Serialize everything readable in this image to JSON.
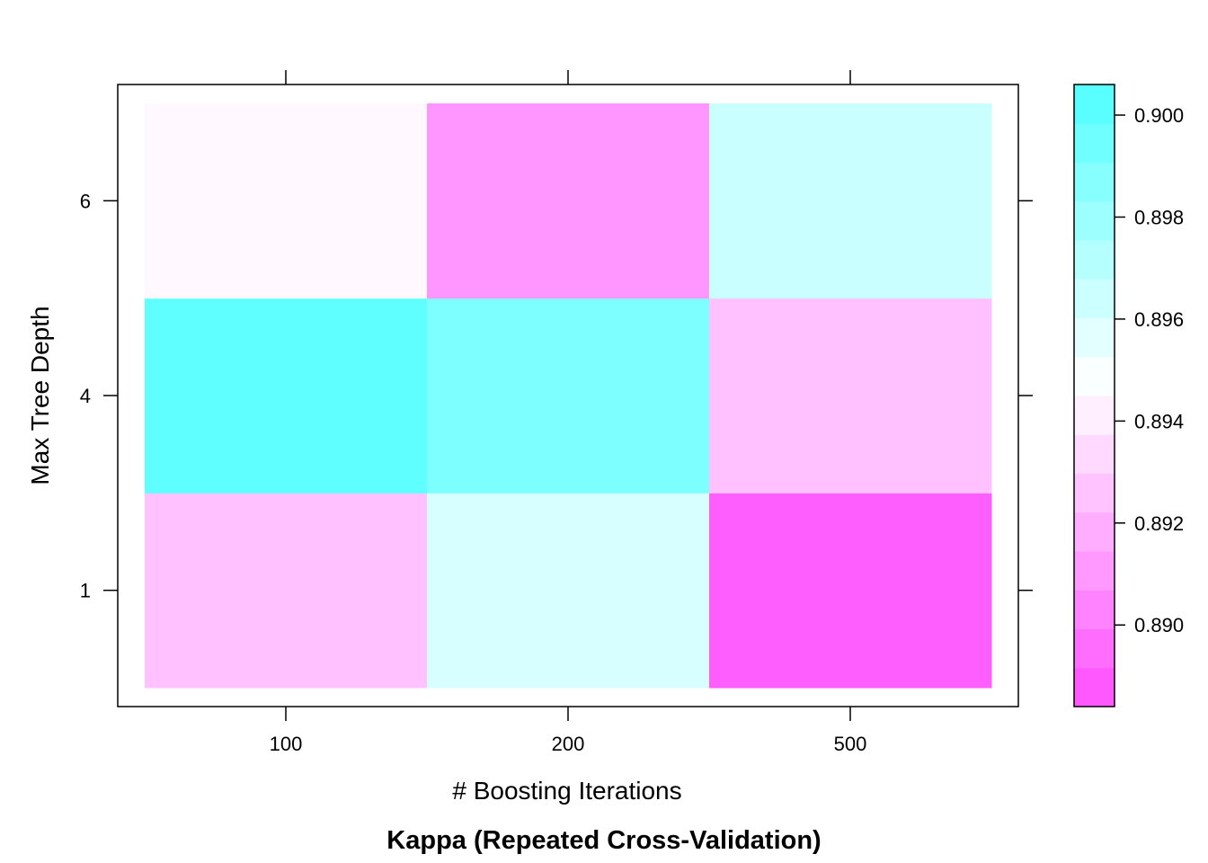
{
  "chart_data": {
    "type": "heatmap",
    "title": "Kappa (Repeated Cross-Validation)",
    "xlabel": "# Boosting Iterations",
    "ylabel": "Max Tree Depth",
    "x_categories": [
      "100",
      "200",
      "500"
    ],
    "y_categories": [
      "1",
      "4",
      "6"
    ],
    "cells": [
      {
        "x": "100",
        "y": "1",
        "value": 0.8925
      },
      {
        "x": "200",
        "y": "1",
        "value": 0.896
      },
      {
        "x": "500",
        "y": "1",
        "value": 0.889
      },
      {
        "x": "100",
        "y": "4",
        "value": 0.9
      },
      {
        "x": "200",
        "y": "4",
        "value": 0.899
      },
      {
        "x": "500",
        "y": "4",
        "value": 0.8925
      },
      {
        "x": "100",
        "y": "6",
        "value": 0.8945
      },
      {
        "x": "200",
        "y": "6",
        "value": 0.891
      },
      {
        "x": "500",
        "y": "6",
        "value": 0.8965
      }
    ],
    "colorbar": {
      "min": 0.8884,
      "max": 0.9006,
      "ticks": [
        "0.890",
        "0.892",
        "0.894",
        "0.896",
        "0.898",
        "0.900"
      ],
      "low_color": "#ff4dff",
      "mid_color": "#ffffff",
      "high_color": "#4dffff",
      "mid_value": 0.8947
    },
    "grid": false
  }
}
